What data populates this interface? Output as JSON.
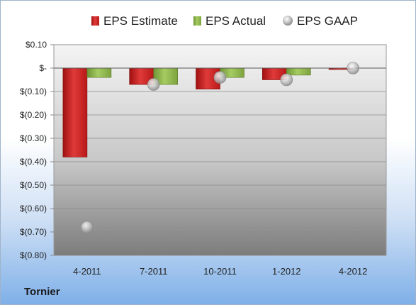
{
  "company": "Tornier",
  "legend": {
    "estimate_label": "EPS Estimate",
    "actual_label": "EPS Actual",
    "gaap_label": "EPS GAAP"
  },
  "colors": {
    "estimate": "#d42a2a",
    "actual": "#8db84a",
    "gaap": "#b0b0b0",
    "plot_top": "#f4f4f4",
    "plot_bottom": "#7c7c7c"
  },
  "chart_data": {
    "type": "bar",
    "categories": [
      "4-2011",
      "7-2011",
      "10-2011",
      "1-2012",
      "4-2012"
    ],
    "series": [
      {
        "name": "EPS Estimate",
        "values": [
          -0.38,
          -0.07,
          -0.09,
          -0.05,
          -0.005
        ]
      },
      {
        "name": "EPS Actual",
        "values": [
          -0.04,
          -0.07,
          -0.04,
          -0.03,
          null
        ]
      },
      {
        "name": "EPS GAAP",
        "values": [
          -0.68,
          -0.07,
          -0.04,
          -0.05,
          0.0
        ]
      }
    ],
    "y_ticks": [
      0.1,
      0,
      -0.1,
      -0.2,
      -0.3,
      -0.4,
      -0.5,
      -0.6,
      -0.7,
      -0.8
    ],
    "y_tick_labels": [
      "$0.10",
      "$-",
      "$(0.10)",
      "$(0.20)",
      "$(0.30)",
      "$(0.40)",
      "$(0.50)",
      "$(0.60)",
      "$(0.70)",
      "$(0.80)"
    ],
    "ylim": [
      -0.8,
      0.1
    ],
    "grid": true,
    "legend_position": "top"
  }
}
